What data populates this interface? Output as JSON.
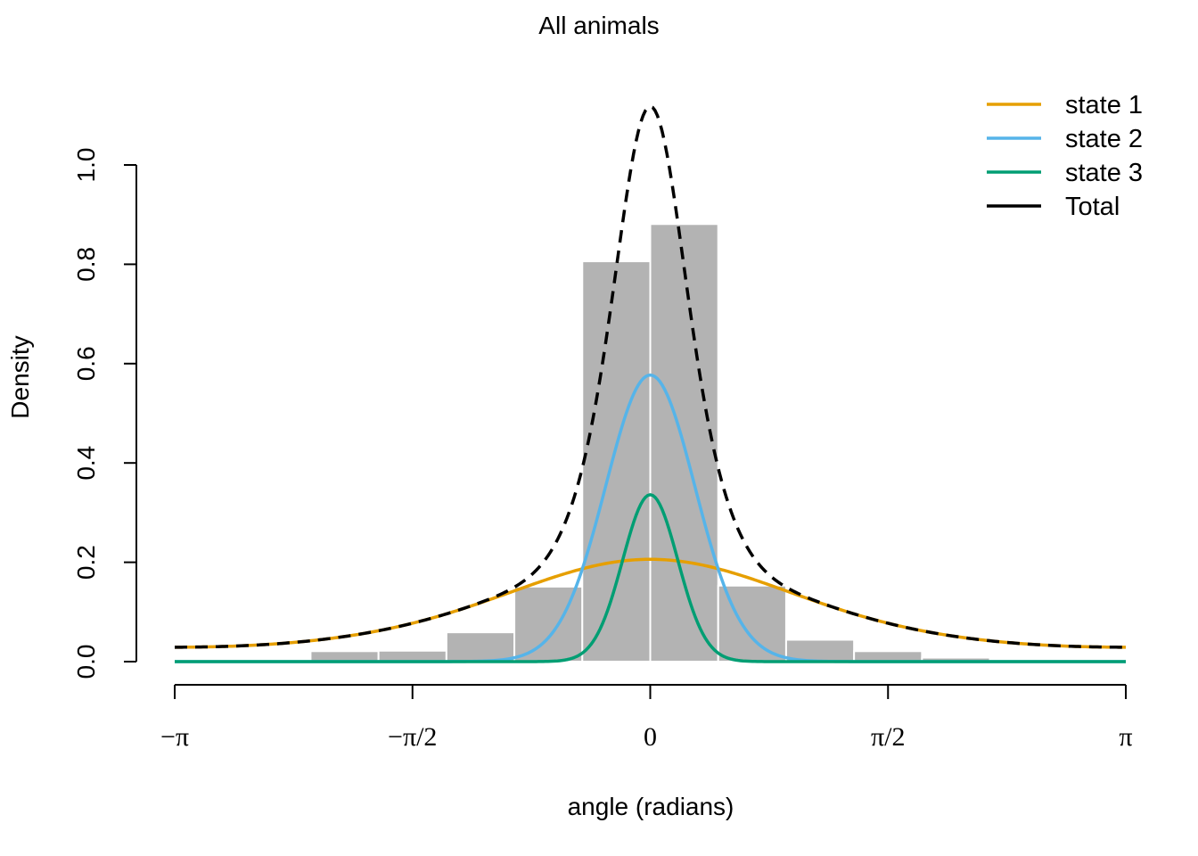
{
  "chart_data": {
    "type": "histogram",
    "title": "All animals",
    "xlabel": "angle (radians)",
    "ylabel": "Density",
    "xlim": [
      -3.14159,
      3.14159
    ],
    "ylim": [
      0,
      1.12
    ],
    "y_ticks": [
      0.0,
      0.2,
      0.4,
      0.6,
      0.8,
      1.0
    ],
    "y_tick_labels": [
      "0.0",
      "0.2",
      "0.4",
      "0.6",
      "0.8",
      "1.0"
    ],
    "x_ticks": [
      -3.14159,
      -1.5708,
      0,
      1.5708,
      3.14159
    ],
    "x_tick_labels": [
      "−π",
      "−π/2",
      "0",
      "π/2",
      "π"
    ],
    "grid": false,
    "legend_position": "top-right",
    "histogram": {
      "bin_edges": [
        -3.14159,
        -2.69279,
        -2.24399,
        -1.7952,
        -1.3464,
        -0.8976,
        -0.4488,
        0,
        0.4488,
        0.8976,
        1.3464,
        1.7952,
        2.24399,
        2.69279,
        3.14159
      ],
      "density": [
        0.004,
        0.004,
        0.021,
        0.022,
        0.059,
        0.151,
        0.806,
        0.881,
        0.153,
        0.044,
        0.021,
        0.008,
        0.004,
        0.004
      ],
      "fill_color": "#b3b3b3",
      "border_color": "#ffffff"
    },
    "series": [
      {
        "name": "state 1",
        "color": "#E69F00",
        "style": "solid",
        "peak_density": 0.206,
        "center": 0
      },
      {
        "name": "state 2",
        "color": "#56B4E9",
        "style": "solid",
        "peak_density": 0.577,
        "center": 0
      },
      {
        "name": "state 3",
        "color": "#009E73",
        "style": "solid",
        "peak_density": 0.336,
        "center": 0
      },
      {
        "name": "Total",
        "color": "#000000",
        "style": "dashed",
        "peak_density": 1.118,
        "center": 0
      }
    ]
  }
}
